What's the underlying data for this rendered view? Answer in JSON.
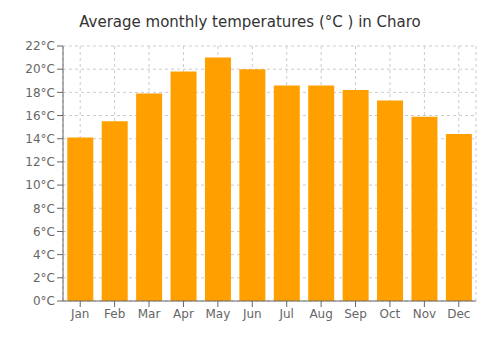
{
  "chart_data": {
    "type": "bar",
    "title": "Average monthly temperatures (°C ) in Charo",
    "categories": [
      "Jan",
      "Feb",
      "Mar",
      "Apr",
      "May",
      "Jun",
      "Jul",
      "Aug",
      "Sep",
      "Oct",
      "Nov",
      "Dec"
    ],
    "values": [
      14.1,
      15.5,
      17.9,
      19.8,
      21.0,
      20.0,
      18.6,
      18.6,
      18.2,
      17.3,
      15.9,
      14.4
    ],
    "color": "#FFA000",
    "ylim": [
      0,
      22
    ],
    "yticks": [
      {
        "value": 0,
        "label": "0°C"
      },
      {
        "value": 2,
        "label": "2°C"
      },
      {
        "value": 4,
        "label": "4°C"
      },
      {
        "value": 6,
        "label": "6°C"
      },
      {
        "value": 8,
        "label": "8°C"
      },
      {
        "value": 10,
        "label": "10°C"
      },
      {
        "value": 12,
        "label": "12°C"
      },
      {
        "value": 14,
        "label": "14°C"
      },
      {
        "value": 16,
        "label": "16°C"
      },
      {
        "value": 18,
        "label": "18°C"
      },
      {
        "value": 20,
        "label": "20°C"
      },
      {
        "value": 22,
        "label": "22°C"
      }
    ],
    "grid": true
  }
}
